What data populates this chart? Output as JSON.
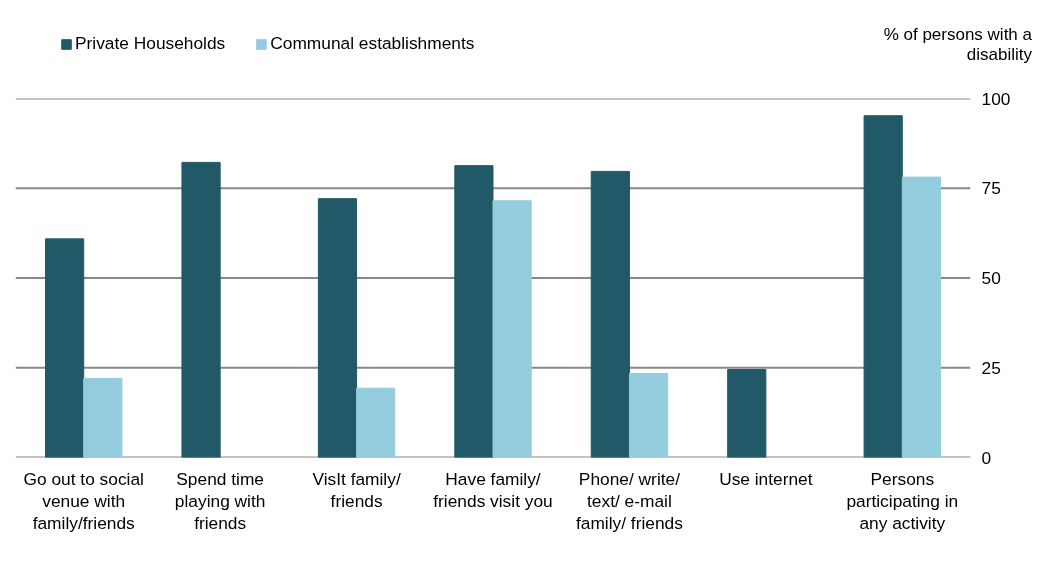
{
  "chart_data": {
    "type": "bar",
    "ylabel": "% of persons with a disability",
    "categories": [
      "Go out to social venue with family/friends",
      "Spend time playing with friends",
      "VisIt family/ friends",
      "Have family/ friends visit you",
      "Phone/ write/ text/ e-mail family/ friends",
      "Use internet",
      "Persons participating in any activity"
    ],
    "series": [
      {
        "name": "Private Households",
        "color": "#215968",
        "values": [
          60.9,
          82.2,
          72.1,
          81.3,
          79.7,
          24.5,
          95.2
        ]
      },
      {
        "name": "Communal establishments",
        "color": "#93cddd",
        "values": [
          22.0,
          null,
          19.3,
          71.5,
          23.4,
          null,
          78.1
        ]
      }
    ],
    "ylim": [
      0,
      100
    ],
    "yticks": [
      0,
      25,
      50,
      75,
      100
    ],
    "grid": "y",
    "legend": "top left"
  }
}
